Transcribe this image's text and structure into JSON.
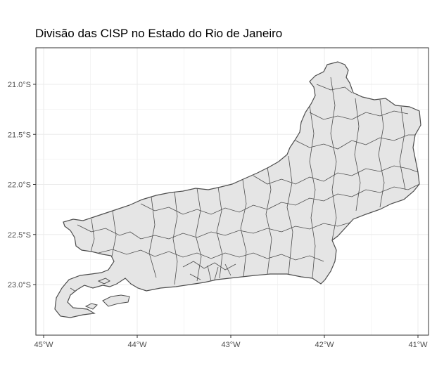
{
  "title": "Divisão das CISP no Estado do Rio de Janeiro",
  "map": {
    "fill_color": "#e5e5e5",
    "border_color": "#4d4d4d",
    "grid_color": "#ebebeb",
    "panel_border_color": "#333333",
    "grid": true,
    "lon_range": [
      -45.1,
      -40.8
    ],
    "lat_range": [
      -23.5,
      -20.5
    ],
    "x_ticks": [
      {
        "value": -45,
        "label": "45°W"
      },
      {
        "value": -44,
        "label": "44°W"
      },
      {
        "value": -43,
        "label": "43°W"
      },
      {
        "value": -42,
        "label": "42°W"
      },
      {
        "value": -41,
        "label": "41°W"
      }
    ],
    "y_ticks": [
      {
        "value": -21.0,
        "label": "21.0°S"
      },
      {
        "value": -21.5,
        "label": "21.5°S"
      },
      {
        "value": -22.0,
        "label": "22.0°S"
      },
      {
        "value": -22.5,
        "label": "22.5°S"
      },
      {
        "value": -23.0,
        "label": "23.0°S"
      }
    ]
  }
}
